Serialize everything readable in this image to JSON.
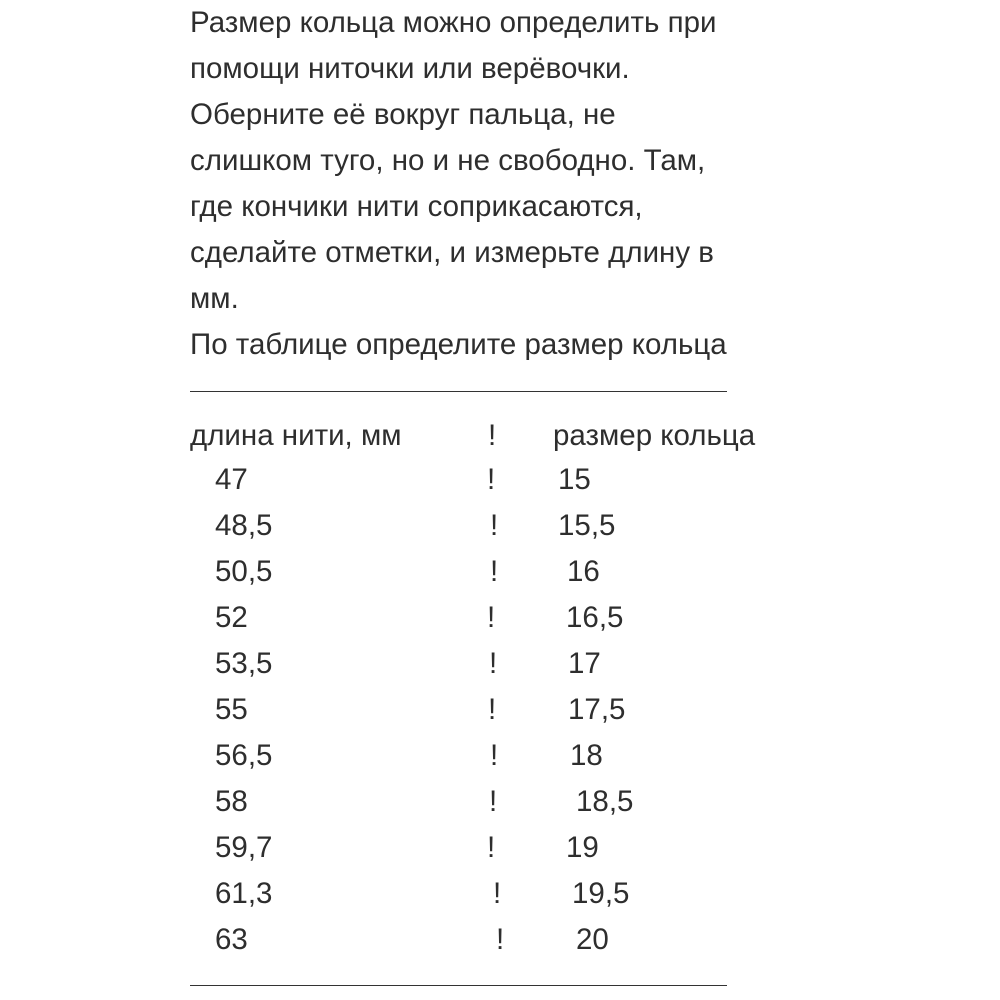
{
  "intro": [
    "Размер кольца можно определить при",
    "помощи ниточки или верёвочки.",
    "Оберните её вокруг пальца, не",
    "слишком туго, но и не свободно. Там,",
    "где кончики нити соприкасаются,",
    "сделайте отметки, и измерьте длину в",
    "мм.",
    "По таблице определите размер кольца"
  ],
  "table": {
    "header": {
      "length": "длина нити, мм",
      "separator": "!",
      "size": "размер кольца"
    },
    "rows": [
      {
        "length": "47",
        "separator": "!",
        "size": "15"
      },
      {
        "length": "48,5",
        "separator": "!",
        "size": "15,5"
      },
      {
        "length": "50,5",
        "separator": "!",
        "size": "16"
      },
      {
        "length": "52",
        "separator": "!",
        "size": "16,5"
      },
      {
        "length": "53,5",
        "separator": "!",
        "size": "17"
      },
      {
        "length": "55",
        "separator": "!",
        "size": "17,5"
      },
      {
        "length": "56,5",
        "separator": "!",
        "size": "18"
      },
      {
        "length": "58",
        "separator": "!",
        "size": "18,5"
      },
      {
        "length": "59,7",
        "separator": "!",
        "size": "19"
      },
      {
        "length": "61,3",
        "separator": "!",
        "size": "19,5"
      },
      {
        "length": "63",
        "separator": "!",
        "size": "20"
      }
    ]
  }
}
